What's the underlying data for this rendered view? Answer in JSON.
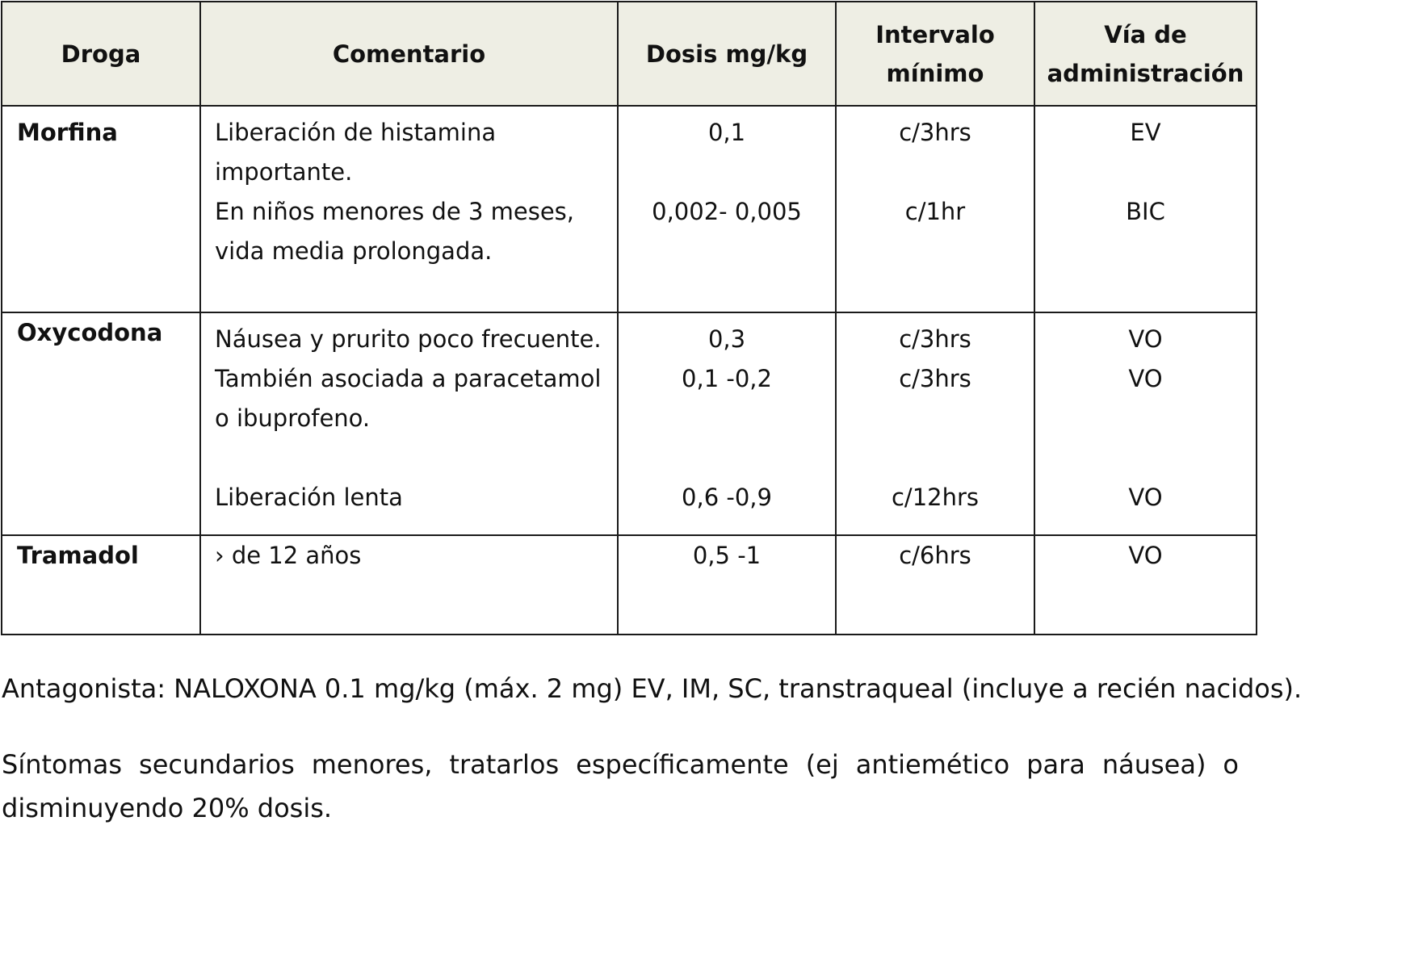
{
  "table": {
    "headers": {
      "drug": "Droga",
      "comment": "Comentario",
      "dose": "Dosis mg/kg",
      "interval_l1": "Intervalo",
      "interval_l2": "mínimo",
      "route_l1": "Vía de",
      "route_l2": "administración"
    },
    "rows": [
      {
        "drug": "Morfina",
        "comment_lines": [
          "Liberación de histamina",
          "importante.",
          "En niños menores de 3 meses,",
          "vida media prolongada."
        ],
        "doses": [
          "0,1",
          "0,002- 0,005"
        ],
        "intervals": [
          "c/3hrs",
          "c/1hr"
        ],
        "routes": [
          "EV",
          "BIC"
        ]
      },
      {
        "drug": "Oxycodona",
        "comment_lines": [
          "Náusea y prurito poco frecuente.",
          "También asociada a paracetamol",
          "o ibuprofeno.",
          "Liberación lenta"
        ],
        "doses": [
          "0,3",
          "0,1 -0,2",
          "0,6 -0,9"
        ],
        "intervals": [
          "c/3hrs",
          "c/3hrs",
          "c/12hrs"
        ],
        "routes": [
          "VO",
          "VO",
          "VO"
        ]
      },
      {
        "drug": "Tramadol",
        "comment_lines": [
          "› de 12 años"
        ],
        "doses": [
          "0,5 -1"
        ],
        "intervals": [
          "c/6hrs"
        ],
        "routes": [
          "VO"
        ]
      }
    ]
  },
  "notes": {
    "antagonist": "Antagonista: NALOXONA 0.1 mg/kg (máx. 2 mg) EV, IM, SC, transtraqueal (incluye a recién nacidos).",
    "symptoms": "Síntomas secundarios menores, tratarlos específicamente (ej antiemético para náusea) o disminuyendo 20% dosis."
  }
}
